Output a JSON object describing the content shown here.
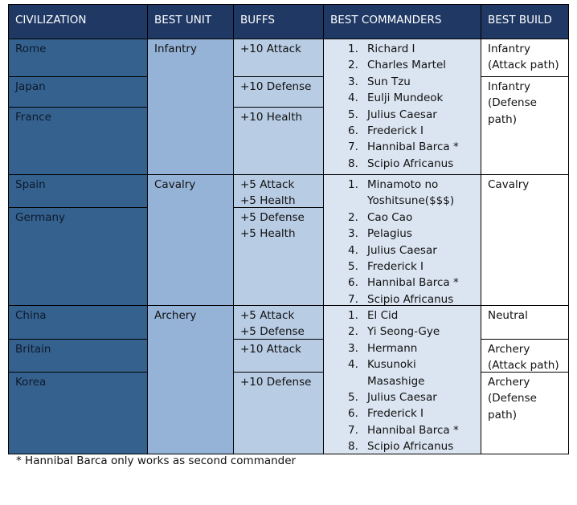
{
  "table": {
    "headers": [
      "CIVILIZATION",
      "BEST UNIT",
      "BUFFS",
      "BEST COMMANDERS",
      "BEST BUILD"
    ],
    "groups": [
      {
        "unit": "Infantry",
        "civilizations": [
          {
            "name": "Rome",
            "buffs": [
              "+10 Attack"
            ]
          },
          {
            "name": "Japan",
            "buffs": [
              "+10 Defense"
            ]
          },
          {
            "name": "France",
            "buffs": [
              "+10 Health"
            ]
          }
        ],
        "builds": [
          "Infantry (Attack path)",
          "Infantry (Defense path)"
        ],
        "commanders": [
          {
            "number": "1.",
            "name": "Richard I"
          },
          {
            "number": "2.",
            "name": "Charles Martel"
          },
          {
            "number": "3.",
            "name": "Sun Tzu"
          },
          {
            "number": "4.",
            "name": "Eulji Mundeok"
          },
          {
            "number": "5.",
            "name": "Julius Caesar"
          },
          {
            "number": "6.",
            "name": "Frederick I"
          },
          {
            "number": "7.",
            "name": "Hannibal Barca *"
          },
          {
            "number": "8.",
            "name": "Scipio Africanus"
          }
        ]
      },
      {
        "unit": "Cavalry",
        "civilizations": [
          {
            "name": "Spain",
            "buffs": [
              "+5 Attack",
              "+5 Health"
            ]
          },
          {
            "name": "Germany",
            "buffs": [
              "+5 Defense",
              "+5 Health"
            ]
          }
        ],
        "builds": [
          "Cavalry"
        ],
        "commanders": [
          {
            "number": "1.",
            "name": "Minamoto no Yoshitsune($$$)"
          },
          {
            "number": "2.",
            "name": "Cao Cao"
          },
          {
            "number": "3.",
            "name": "Pelagius"
          },
          {
            "number": "4.",
            "name": "Julius Caesar"
          },
          {
            "number": "5.",
            "name": "Frederick I"
          },
          {
            "number": "6.",
            "name": "Hannibal Barca *"
          },
          {
            "number": "7.",
            "name": "Scipio Africanus"
          }
        ]
      },
      {
        "unit": "Archery",
        "civilizations": [
          {
            "name": "China",
            "buffs": [
              "+5 Attack",
              "+5 Defense"
            ]
          },
          {
            "name": "Britain",
            "buffs": [
              "+10 Attack"
            ]
          },
          {
            "name": "Korea",
            "buffs": [
              "+10 Defense"
            ]
          }
        ],
        "builds": [
          "Neutral",
          "Archery (Attack path)",
          "Archery (Defense path)"
        ],
        "commanders": [
          {
            "number": "1.",
            "name": "El Cid"
          },
          {
            "number": "2.",
            "name": "Yi Seong-Gye"
          },
          {
            "number": "3.",
            "name": "Hermann"
          },
          {
            "number": "4.",
            "name": "Kusunoki Masashige"
          },
          {
            "number": "5.",
            "name": "Julius Caesar"
          },
          {
            "number": "6.",
            "name": "Frederick I"
          },
          {
            "number": "7.",
            "name": "Hannibal Barca *"
          },
          {
            "number": "8.",
            "name": "Scipio Africanus"
          }
        ]
      }
    ]
  },
  "footnote": "* Hannibal Barca only works as second commander"
}
